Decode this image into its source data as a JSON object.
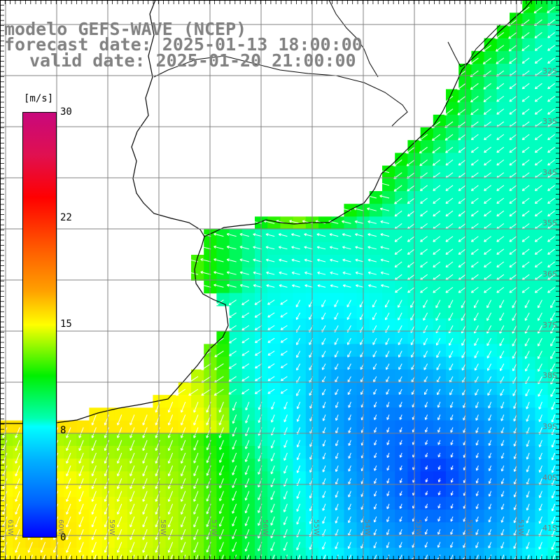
{
  "title": {
    "line1": "modelo GEFS-WAVE (NCEP)",
    "line2": "forecast date: 2025-01-13 18:00:00",
    "line3": "valid date: 2025-01-20 21:00:00"
  },
  "colorbar": {
    "unit": "[m/s]",
    "ticks": [
      "30",
      "22",
      "15",
      "8",
      "0"
    ],
    "tick_values": [
      30,
      22,
      15,
      8,
      0
    ]
  },
  "map": {
    "lat_labels": [
      "32S",
      "33S",
      "34S",
      "35S",
      "36S",
      "37S",
      "38S",
      "39S",
      "40S",
      "41S"
    ],
    "lon_labels": [
      "61W",
      "60W",
      "59W",
      "58W",
      "57W",
      "56W",
      "55W",
      "54W",
      "53W",
      "52W",
      "51W"
    ],
    "extent": {
      "lon": [
        -62,
        -50.5
      ],
      "lat": [
        -41.4,
        -31.4
      ]
    },
    "colors": {
      "land": "#ffffff",
      "coast": "#000000",
      "grid": "#808080",
      "arrow": "#ffffff"
    }
  }
}
